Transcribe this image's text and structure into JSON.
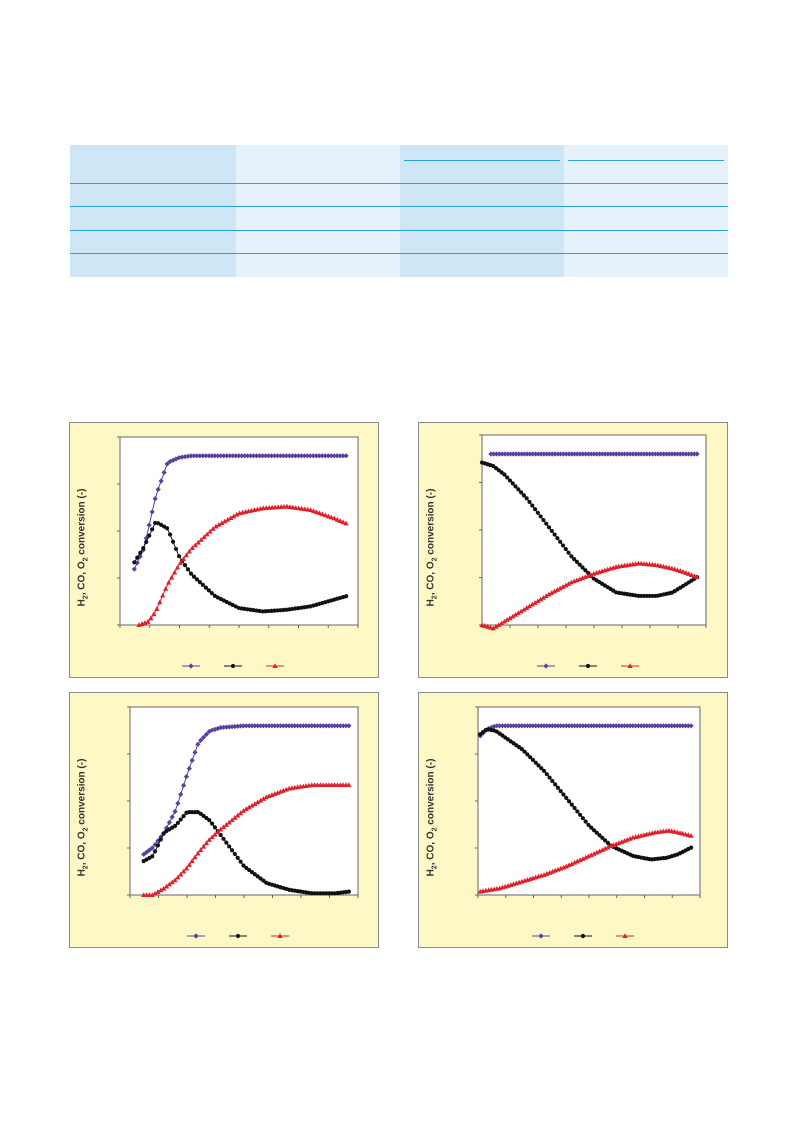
{
  "table": {
    "colors": {
      "dark": "#cfe6f7",
      "light": "#e6f2fb",
      "rule": "#29a3d9"
    },
    "header": [
      "",
      "",
      "",
      ""
    ],
    "rows": [
      [
        "",
        "",
        "",
        ""
      ],
      [
        "",
        "",
        "",
        ""
      ],
      [
        "",
        "",
        "",
        ""
      ],
      [
        "",
        "",
        "",
        ""
      ]
    ]
  },
  "y_axis_label": {
    "pre": "H",
    "s1": "2",
    "mid": ", CO, O",
    "s2": "2",
    "post": " conversion (-)"
  },
  "chart_data": [
    {
      "type": "line",
      "ylim": [
        0,
        1
      ],
      "xlim": [
        0,
        1
      ],
      "grid": false,
      "legend": "bottom",
      "series": [
        {
          "color": "#5a3fa0",
          "marker": "diamond",
          "x": [
            0.06,
            0.1,
            0.15,
            0.2,
            0.25,
            0.3,
            0.4,
            0.6,
            0.8,
            0.95
          ],
          "y": [
            0.33,
            0.45,
            0.76,
            0.96,
            0.99,
            1.0,
            1.0,
            1.0,
            1.0,
            1.0
          ]
        },
        {
          "color": "#111111",
          "marker": "circle",
          "x": [
            0.06,
            0.1,
            0.15,
            0.2,
            0.25,
            0.3,
            0.4,
            0.5,
            0.6,
            0.7,
            0.8,
            0.9,
            0.95
          ],
          "y": [
            0.37,
            0.46,
            0.61,
            0.57,
            0.4,
            0.3,
            0.17,
            0.1,
            0.08,
            0.09,
            0.11,
            0.15,
            0.17
          ]
        },
        {
          "color": "#e0202a",
          "marker": "triangle",
          "x": [
            0.08,
            0.12,
            0.15,
            0.2,
            0.25,
            0.3,
            0.4,
            0.5,
            0.6,
            0.7,
            0.8,
            0.9,
            0.95
          ],
          "y": [
            0.0,
            0.02,
            0.08,
            0.24,
            0.36,
            0.45,
            0.58,
            0.66,
            0.69,
            0.7,
            0.68,
            0.63,
            0.6
          ]
        }
      ]
    },
    {
      "type": "line",
      "ylim": [
        0,
        1
      ],
      "xlim": [
        0,
        1
      ],
      "grid": false,
      "legend": "bottom",
      "series": [
        {
          "color": "#5a3fa0",
          "marker": "diamond",
          "x": [
            0.04,
            0.2,
            0.4,
            0.6,
            0.8,
            0.96
          ],
          "y": [
            1.0,
            1.0,
            1.0,
            1.0,
            1.0,
            1.0
          ]
        },
        {
          "color": "#111111",
          "marker": "circle",
          "x": [
            0.0,
            0.05,
            0.1,
            0.2,
            0.3,
            0.4,
            0.5,
            0.6,
            0.7,
            0.78,
            0.85,
            0.9,
            0.96
          ],
          "y": [
            0.95,
            0.93,
            0.88,
            0.74,
            0.57,
            0.4,
            0.27,
            0.19,
            0.17,
            0.17,
            0.19,
            0.23,
            0.28
          ]
        },
        {
          "color": "#e0202a",
          "marker": "triangle",
          "x": [
            0.0,
            0.05,
            0.1,
            0.2,
            0.3,
            0.4,
            0.5,
            0.6,
            0.7,
            0.78,
            0.85,
            0.9,
            0.96
          ],
          "y": [
            0.0,
            -0.02,
            0.02,
            0.1,
            0.18,
            0.25,
            0.3,
            0.34,
            0.36,
            0.35,
            0.33,
            0.31,
            0.28
          ]
        }
      ]
    },
    {
      "type": "line",
      "ylim": [
        0,
        1
      ],
      "xlim": [
        0,
        1
      ],
      "grid": false,
      "legend": "bottom",
      "series": [
        {
          "color": "#5a3fa0",
          "marker": "diamond",
          "x": [
            0.06,
            0.1,
            0.15,
            0.2,
            0.25,
            0.3,
            0.35,
            0.4,
            0.5,
            0.6,
            0.8,
            0.96
          ],
          "y": [
            0.24,
            0.28,
            0.37,
            0.5,
            0.71,
            0.9,
            0.97,
            0.99,
            1.0,
            1.0,
            1.0,
            1.0
          ]
        },
        {
          "color": "#111111",
          "marker": "circle",
          "x": [
            0.06,
            0.1,
            0.15,
            0.2,
            0.25,
            0.3,
            0.35,
            0.4,
            0.5,
            0.6,
            0.7,
            0.8,
            0.9,
            0.96
          ],
          "y": [
            0.2,
            0.23,
            0.37,
            0.41,
            0.49,
            0.49,
            0.44,
            0.35,
            0.17,
            0.07,
            0.03,
            0.01,
            0.01,
            0.02
          ]
        },
        {
          "color": "#e0202a",
          "marker": "triangle",
          "x": [
            0.06,
            0.1,
            0.15,
            0.2,
            0.25,
            0.3,
            0.35,
            0.4,
            0.5,
            0.6,
            0.7,
            0.8,
            0.9,
            0.96
          ],
          "y": [
            0.0,
            0.0,
            0.04,
            0.09,
            0.16,
            0.25,
            0.33,
            0.39,
            0.5,
            0.58,
            0.63,
            0.65,
            0.65,
            0.65
          ]
        }
      ]
    },
    {
      "type": "line",
      "ylim": [
        0,
        1
      ],
      "xlim": [
        0,
        1
      ],
      "grid": false,
      "legend": "bottom",
      "series": [
        {
          "color": "#5a3fa0",
          "marker": "diamond",
          "x": [
            0.01,
            0.04,
            0.08,
            0.2,
            0.4,
            0.6,
            0.8,
            0.96
          ],
          "y": [
            0.94,
            0.98,
            1.0,
            1.0,
            1.0,
            1.0,
            1.0,
            1.0
          ]
        },
        {
          "color": "#111111",
          "marker": "circle",
          "x": [
            0.01,
            0.04,
            0.08,
            0.2,
            0.3,
            0.4,
            0.5,
            0.6,
            0.7,
            0.78,
            0.85,
            0.9,
            0.96
          ],
          "y": [
            0.95,
            0.98,
            0.97,
            0.86,
            0.73,
            0.57,
            0.41,
            0.29,
            0.23,
            0.21,
            0.22,
            0.24,
            0.28
          ]
        },
        {
          "color": "#e0202a",
          "marker": "triangle",
          "x": [
            0.01,
            0.1,
            0.2,
            0.3,
            0.4,
            0.5,
            0.6,
            0.7,
            0.8,
            0.86,
            0.9,
            0.96
          ],
          "y": [
            0.02,
            0.04,
            0.08,
            0.12,
            0.17,
            0.23,
            0.29,
            0.34,
            0.37,
            0.38,
            0.37,
            0.35
          ]
        }
      ]
    }
  ]
}
